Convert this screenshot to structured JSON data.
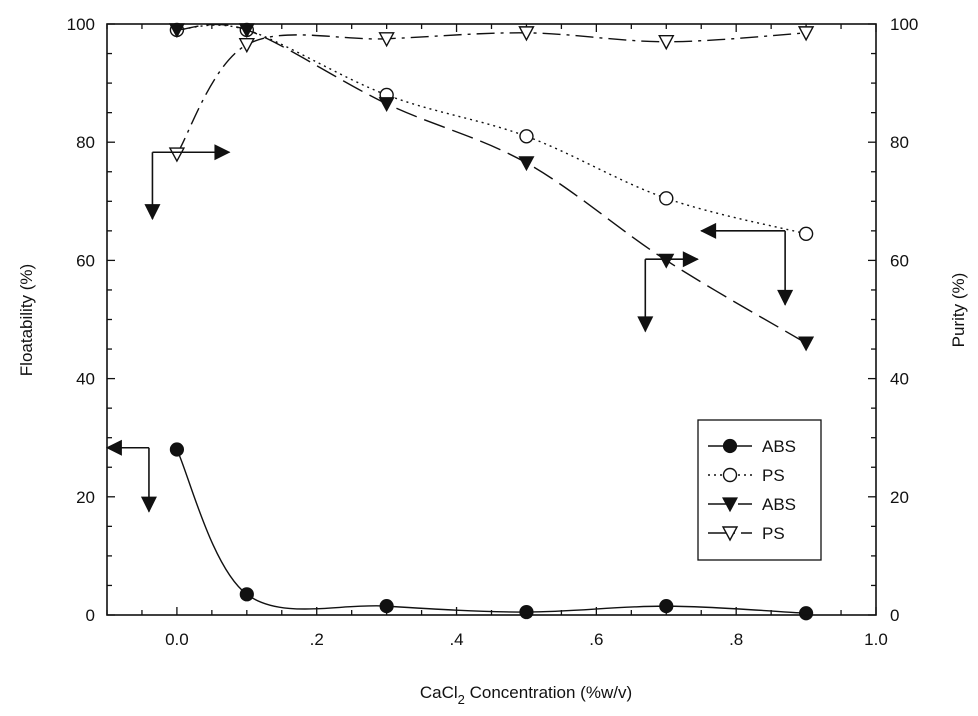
{
  "chart_data": {
    "type": "line",
    "x_axis": {
      "label_main": "CaCl",
      "label_sub": "2",
      "label_rest": " Concentration (%w/v)",
      "range": [
        -0.1,
        1.0
      ],
      "ticks": [
        0.0,
        0.2,
        0.4,
        0.6,
        0.8,
        1.0
      ],
      "tick_labels": [
        "0.0",
        ".2",
        ".4",
        ".6",
        ".8",
        "1.0"
      ]
    },
    "y_left": {
      "label": "Floatability (%)",
      "range": [
        0,
        100
      ],
      "ticks": [
        0,
        20,
        40,
        60,
        80,
        100
      ],
      "tick_labels": [
        "0",
        "20",
        "40",
        "60",
        "80",
        "100"
      ]
    },
    "y_right": {
      "label": "Purity (%)",
      "range": [
        0,
        100
      ],
      "ticks": [
        0,
        20,
        40,
        60,
        80,
        100
      ],
      "tick_labels": [
        "0",
        "20",
        "40",
        "60",
        "80",
        "100"
      ]
    },
    "series": [
      {
        "name": "ABS",
        "axis": "left",
        "marker": "filled-circle",
        "line": "solid",
        "x": [
          0.0,
          0.1,
          0.3,
          0.5,
          0.7,
          0.9
        ],
        "y": [
          28,
          3.5,
          1.5,
          0.5,
          1.5,
          0.3
        ]
      },
      {
        "name": "PS",
        "axis": "left",
        "marker": "open-circle",
        "line": "dotted",
        "x": [
          0.0,
          0.1,
          0.3,
          0.5,
          0.7,
          0.9
        ],
        "y": [
          99,
          99,
          88,
          81,
          70.5,
          64.5
        ]
      },
      {
        "name": "ABS",
        "axis": "right",
        "marker": "filled-triangle",
        "line": "dashed",
        "x": [
          0.0,
          0.1,
          0.3,
          0.5,
          0.7,
          0.9
        ],
        "y": [
          99,
          99,
          86.5,
          76.5,
          60,
          46
        ]
      },
      {
        "name": "PS",
        "axis": "right",
        "marker": "open-triangle",
        "line": "dash-dot",
        "x": [
          0.0,
          0.1,
          0.3,
          0.5,
          0.7,
          0.9
        ],
        "y": [
          78,
          96.5,
          97.5,
          98.5,
          97,
          98.5
        ]
      }
    ],
    "legend_position": "bottom-right",
    "colors": {
      "ink": "#111111",
      "background": "#ffffff"
    }
  }
}
